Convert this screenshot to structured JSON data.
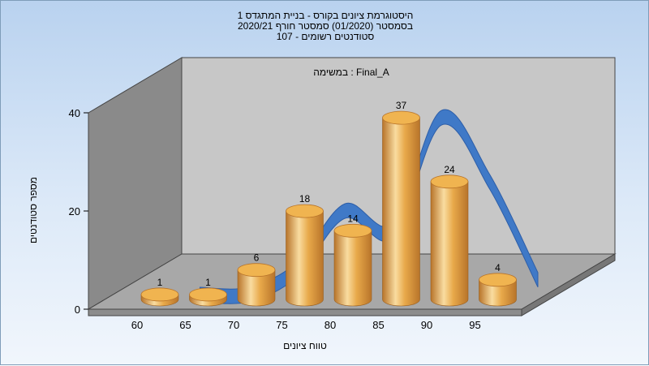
{
  "chart_data": {
    "type": "bar",
    "title_lines": [
      "היסטוגרמת ציונים בקורס - בניית המתגדס 1",
      "בסמסטר  (01/2020)  סמסטר חורף 2020/21",
      "סטודנטים רשומים - 107"
    ],
    "annotation": "במשימה : Final_A",
    "xlabel": "טווח ציונים",
    "ylabel": "מספר סטודנטים",
    "x_ticks": [
      "60",
      "65",
      "70",
      "75",
      "80",
      "85",
      "90",
      "95"
    ],
    "y_ticks": [
      "0",
      "20",
      "40"
    ],
    "ylim": [
      0,
      40
    ],
    "grid": false,
    "bars": [
      {
        "x": 60,
        "value": 1,
        "label": "1"
      },
      {
        "x": 65,
        "value": 1,
        "label": "1"
      },
      {
        "x": 70,
        "value": 6,
        "label": "6"
      },
      {
        "x": 75,
        "value": 18,
        "label": "18"
      },
      {
        "x": 80,
        "value": 14,
        "label": "14"
      },
      {
        "x": 85,
        "value": 37,
        "label": "37"
      },
      {
        "x": 90,
        "value": 24,
        "label": "24"
      },
      {
        "x": 95,
        "value": 4,
        "label": "4"
      }
    ],
    "curve": {
      "x": [
        65,
        70,
        75,
        80,
        85,
        90,
        95,
        100
      ],
      "values": [
        1,
        1,
        6,
        18,
        14,
        37,
        24,
        4
      ]
    },
    "colors": {
      "bar": "#e8a94a",
      "bar_dark": "#b8742a",
      "bar_light": "#f9dca0",
      "curve": "#3f79c7",
      "back_wall": "#c7c7c7",
      "side_wall": "#8a8a8a",
      "floor": "#a8a8a8"
    }
  }
}
